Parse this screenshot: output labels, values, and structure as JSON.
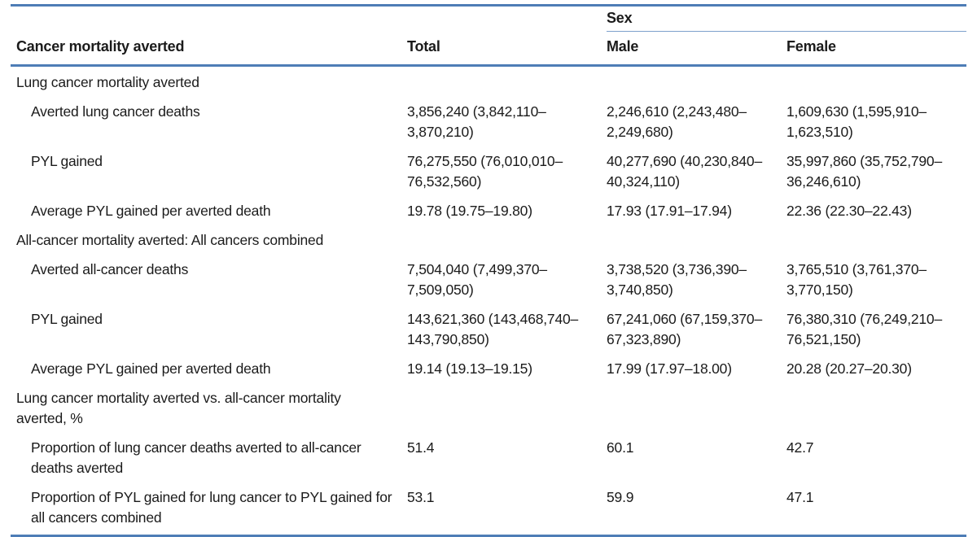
{
  "colors": {
    "rule_thick": "#4e7db6",
    "rule_thin": "#7da0cc",
    "text": "#1b1b1b",
    "background": "#ffffff"
  },
  "table": {
    "group_header": "Sex",
    "columns": {
      "stub": "Cancer mortality averted",
      "total": "Total",
      "male": "Male",
      "female": "Female"
    },
    "rows": [
      {
        "type": "section",
        "label": "Lung cancer mortality averted"
      },
      {
        "type": "data",
        "label": "Averted lung cancer deaths",
        "total": "3,856,240 (3,842,110–\n3,870,210)",
        "male": "2,246,610 (2,243,480–\n2,249,680)",
        "female": "1,609,630 (1,595,910–\n1,623,510)"
      },
      {
        "type": "data",
        "label": "PYL gained",
        "total": "76,275,550 (76,010,010–\n76,532,560)",
        "male": "40,277,690 (40,230,840–\n40,324,110)",
        "female": "35,997,860 (35,752,790–\n36,246,610)"
      },
      {
        "type": "data",
        "label": "Average PYL gained per averted death",
        "total": "19.78 (19.75–19.80)",
        "male": "17.93 (17.91–17.94)",
        "female": "22.36 (22.30–22.43)"
      },
      {
        "type": "section",
        "label": "All-cancer mortality averted: All cancers combined"
      },
      {
        "type": "data",
        "label": "Averted all-cancer deaths",
        "total": "7,504,040 (7,499,370–\n7,509,050)",
        "male": "3,738,520 (3,736,390–\n3,740,850)",
        "female": "3,765,510 (3,761,370–\n3,770,150)"
      },
      {
        "type": "data",
        "label": "PYL gained",
        "total": "143,621,360 (143,468,740–\n143,790,850)",
        "male": "67,241,060 (67,159,370–\n67,323,890)",
        "female": "76,380,310 (76,249,210–\n76,521,150)"
      },
      {
        "type": "data",
        "label": "Average PYL gained per averted death",
        "total": "19.14 (19.13–19.15)",
        "male": "17.99 (17.97–18.00)",
        "female": "20.28 (20.27–20.30)"
      },
      {
        "type": "section",
        "label": "Lung cancer mortality averted vs. all-cancer mortality\naverted, %"
      },
      {
        "type": "data",
        "label": "Proportion of lung cancer deaths averted to all-cancer\ndeaths averted",
        "total": "51.4",
        "male": "60.1",
        "female": "42.7"
      },
      {
        "type": "data",
        "label": "Proportion of PYL gained for lung cancer to PYL gained for\nall cancers combined",
        "total": "53.1",
        "male": "59.9",
        "female": "47.1"
      }
    ]
  }
}
